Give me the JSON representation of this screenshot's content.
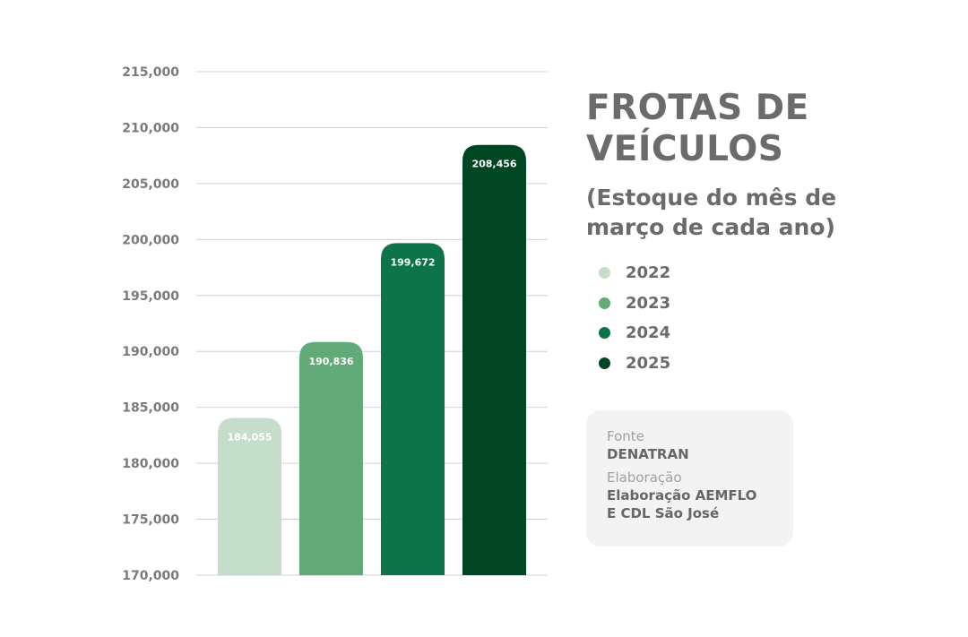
{
  "chart_data": {
    "type": "bar",
    "title": "FROTAS DE VEÍCULOS",
    "subtitle": "(Estoque do mês de março de cada ano)",
    "categories": [
      "2022",
      "2023",
      "2024",
      "2025"
    ],
    "values": [
      184055,
      190836,
      199672,
      208456
    ],
    "value_labels": [
      "184,055",
      "190,836",
      "199,672",
      "208,456"
    ],
    "colors": [
      "#c5dec9",
      "#62aa77",
      "#0c7448",
      "#004623"
    ],
    "ylim": [
      170000,
      215000
    ],
    "yticks": [
      170000,
      175000,
      180000,
      185000,
      190000,
      195000,
      200000,
      205000,
      210000,
      215000
    ],
    "ytick_labels": [
      "170,000",
      "175,000",
      "180,000",
      "185,000",
      "190,000",
      "195,000",
      "200,000",
      "205,000",
      "210,000",
      "215,000"
    ],
    "grid": true,
    "legend_position": "right",
    "xlabel": "",
    "ylabel": ""
  },
  "title_line1": "FROTAS DE",
  "title_line2": "VEÍCULOS",
  "subtitle_line1": "(Estoque do mês de",
  "subtitle_line2": "março de cada ano)",
  "legend": [
    {
      "label": "2022",
      "color": "#c5dec9"
    },
    {
      "label": "2023",
      "color": "#62aa77"
    },
    {
      "label": "2024",
      "color": "#0c7448"
    },
    {
      "label": "2025",
      "color": "#004623"
    }
  ],
  "source": {
    "fonte_label": "Fonte",
    "fonte_value": "DENATRAN",
    "elab_label": "Elaboração",
    "elab_value_line1": "Elaboração AEMFLO",
    "elab_value_line2": "E CDL São José"
  }
}
